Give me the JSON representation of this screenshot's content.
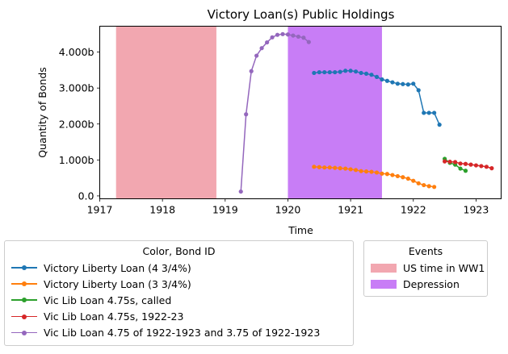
{
  "chart_data": {
    "type": "line",
    "title": "Victory Loan(s) Public Holdings",
    "xlabel": "Time",
    "ylabel": "Quantity of Bonds",
    "xlim": [
      1917.0,
      1923.4
    ],
    "ylim": [
      -0.08,
      4.72
    ],
    "x_ticks": [
      1917,
      1918,
      1919,
      1920,
      1921,
      1922,
      1923
    ],
    "y_ticks": [
      {
        "value": 0.0,
        "label": "0.0"
      },
      {
        "value": 1.0,
        "label": "1.000b"
      },
      {
        "value": 2.0,
        "label": "2.000b"
      },
      {
        "value": 3.0,
        "label": "3.000b"
      },
      {
        "value": 4.0,
        "label": "4.000b"
      }
    ],
    "grid": false,
    "bands": [
      {
        "name": "US time in WW1",
        "start": 1917.26,
        "end": 1918.86,
        "color": "#f2a7b0"
      },
      {
        "name": "Depression",
        "start": 1920.0,
        "end": 1921.5,
        "color": "#c87df6"
      }
    ],
    "series": [
      {
        "name": "Victory Liberty Loan (4 3/4%)",
        "color": "#1f77b4",
        "x": [
          1920.417,
          1920.5,
          1920.583,
          1920.667,
          1920.75,
          1920.833,
          1920.917,
          1921.0,
          1921.083,
          1921.167,
          1921.25,
          1921.333,
          1921.417,
          1921.5,
          1921.583,
          1921.667,
          1921.75,
          1921.833,
          1921.917,
          1922.0,
          1922.083,
          1922.167,
          1922.25,
          1922.333,
          1922.417
        ],
        "y": [
          3.42,
          3.44,
          3.44,
          3.44,
          3.44,
          3.45,
          3.48,
          3.48,
          3.46,
          3.42,
          3.4,
          3.37,
          3.31,
          3.24,
          3.2,
          3.16,
          3.12,
          3.11,
          3.1,
          3.12,
          2.94,
          2.31,
          2.31,
          2.31,
          1.98
        ]
      },
      {
        "name": "Victory Liberty Loan (3 3/4%)",
        "color": "#ff7f0e",
        "x": [
          1920.417,
          1920.5,
          1920.583,
          1920.667,
          1920.75,
          1920.833,
          1920.917,
          1921.0,
          1921.083,
          1921.167,
          1921.25,
          1921.333,
          1921.417,
          1921.5,
          1921.583,
          1921.667,
          1921.75,
          1921.833,
          1921.917,
          1922.0,
          1922.083,
          1922.167,
          1922.25,
          1922.333
        ],
        "y": [
          0.81,
          0.8,
          0.79,
          0.79,
          0.78,
          0.77,
          0.76,
          0.74,
          0.72,
          0.69,
          0.68,
          0.67,
          0.65,
          0.62,
          0.61,
          0.58,
          0.55,
          0.52,
          0.48,
          0.42,
          0.35,
          0.3,
          0.27,
          0.25
        ]
      },
      {
        "name": "Vic Lib Loan 4.75s, called",
        "color": "#2ca02c",
        "x": [
          1922.5,
          1922.583,
          1922.667,
          1922.75,
          1922.833
        ],
        "y": [
          1.03,
          0.92,
          0.87,
          0.76,
          0.7
        ]
      },
      {
        "name": "Vic Lib Loan 4.75s, 1922-23",
        "color": "#d62728",
        "x": [
          1922.5,
          1922.583,
          1922.667,
          1922.75,
          1922.833,
          1922.917,
          1923.0,
          1923.083,
          1923.167,
          1923.25
        ],
        "y": [
          0.96,
          0.95,
          0.94,
          0.9,
          0.89,
          0.87,
          0.85,
          0.83,
          0.81,
          0.77
        ]
      },
      {
        "name": "Vic Lib Loan 4.75 of 1922-1923 and 3.75 of 1922-1923",
        "color": "#9467bd",
        "x": [
          1919.25,
          1919.333,
          1919.417,
          1919.5,
          1919.583,
          1919.667,
          1919.75,
          1919.833,
          1919.917,
          1920.0,
          1920.083,
          1920.167,
          1920.25,
          1920.333
        ],
        "y": [
          0.12,
          2.27,
          3.47,
          3.9,
          4.11,
          4.27,
          4.41,
          4.48,
          4.5,
          4.49,
          4.46,
          4.43,
          4.4,
          4.28
        ]
      }
    ],
    "legend": {
      "title": "Color, Bond ID",
      "placement": "below-left"
    },
    "events_legend": {
      "title": "Events",
      "placement": "below-right"
    }
  }
}
